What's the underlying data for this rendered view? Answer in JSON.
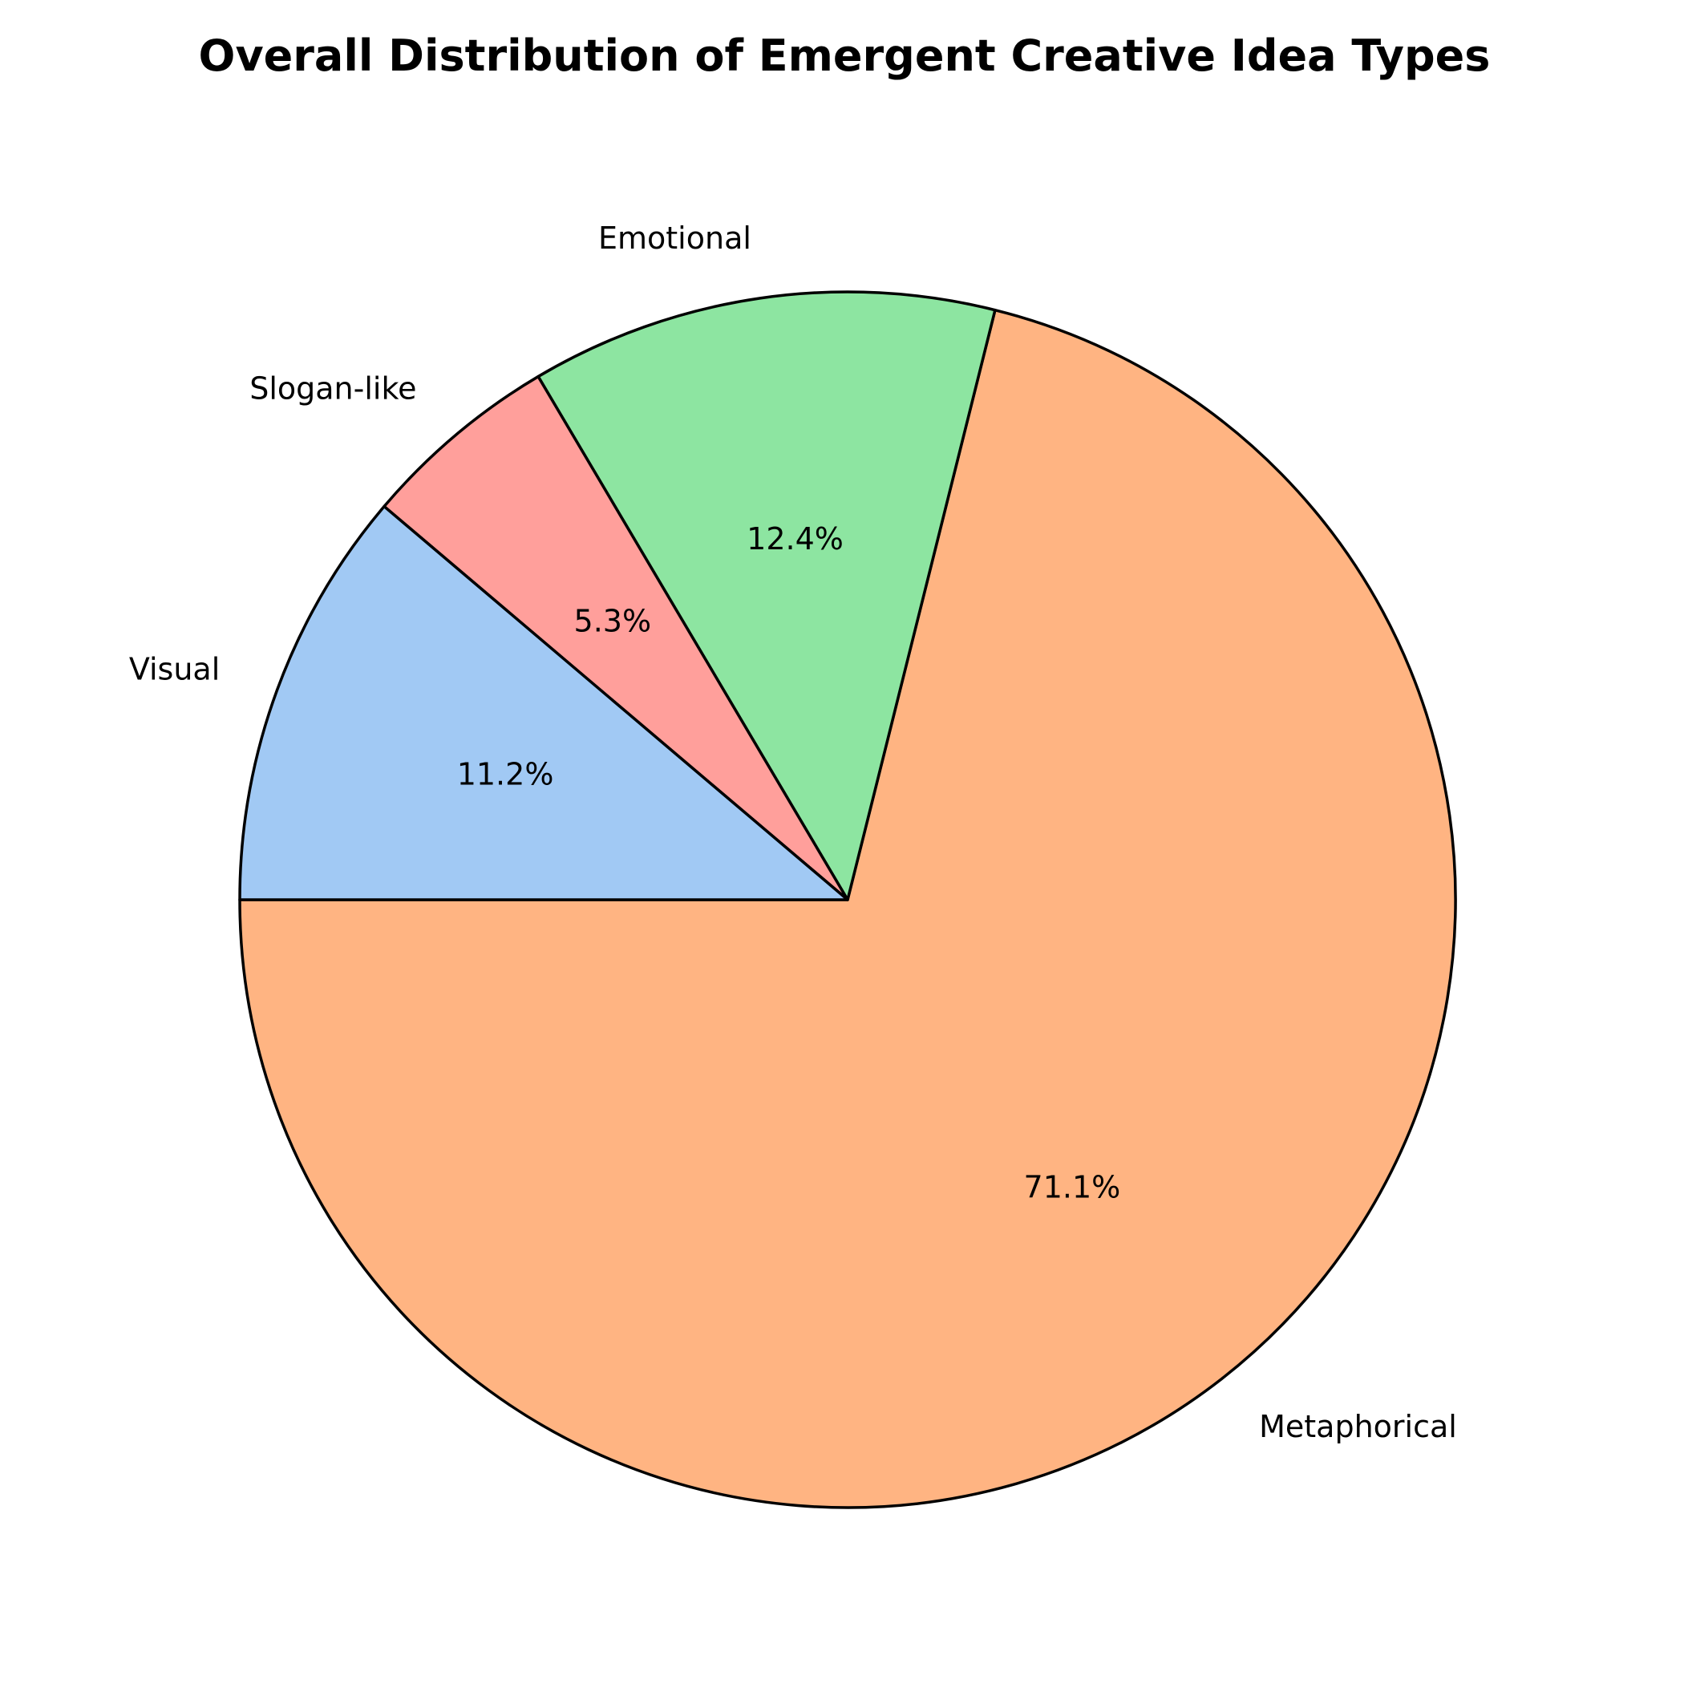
{
  "chart_data": {
    "type": "pie",
    "title": "Overall Distribution of Emergent Creative Idea Types",
    "start_angle_deg": 180,
    "direction": "counterclockwise",
    "slices": [
      {
        "label": "Metaphorical",
        "value": 71.1,
        "pct_label": "71.1%",
        "color": "#ffb482"
      },
      {
        "label": "Emotional",
        "value": 12.4,
        "pct_label": "12.4%",
        "color": "#8de5a1"
      },
      {
        "label": "Slogan-like",
        "value": 5.3,
        "pct_label": "5.3%",
        "color": "#ff9f9b"
      },
      {
        "label": "Visual",
        "value": 11.2,
        "pct_label": "11.2%",
        "color": "#a1c9f4"
      }
    ],
    "legend": "none"
  }
}
